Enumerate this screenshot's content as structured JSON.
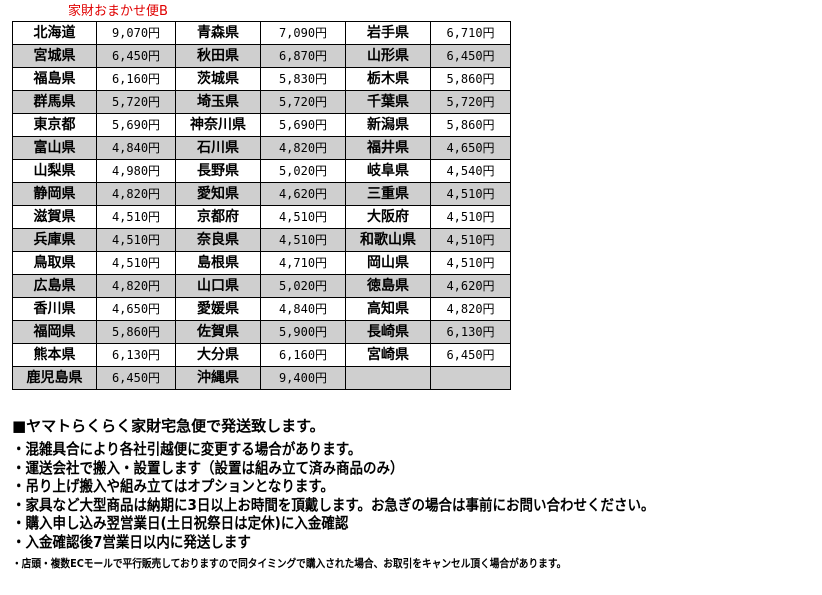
{
  "title": "家財おまかせ便B",
  "rows": [
    [
      [
        "北海道",
        "9,070円"
      ],
      [
        "青森県",
        "7,090円"
      ],
      [
        "岩手県",
        "6,710円"
      ]
    ],
    [
      [
        "宮城県",
        "6,450円"
      ],
      [
        "秋田県",
        "6,870円"
      ],
      [
        "山形県",
        "6,450円"
      ]
    ],
    [
      [
        "福島県",
        "6,160円"
      ],
      [
        "茨城県",
        "5,830円"
      ],
      [
        "栃木県",
        "5,860円"
      ]
    ],
    [
      [
        "群馬県",
        "5,720円"
      ],
      [
        "埼玉県",
        "5,720円"
      ],
      [
        "千葉県",
        "5,720円"
      ]
    ],
    [
      [
        "東京都",
        "5,690円"
      ],
      [
        "神奈川県",
        "5,690円"
      ],
      [
        "新潟県",
        "5,860円"
      ]
    ],
    [
      [
        "富山県",
        "4,840円"
      ],
      [
        "石川県",
        "4,820円"
      ],
      [
        "福井県",
        "4,650円"
      ]
    ],
    [
      [
        "山梨県",
        "4,980円"
      ],
      [
        "長野県",
        "5,020円"
      ],
      [
        "岐阜県",
        "4,540円"
      ]
    ],
    [
      [
        "静岡県",
        "4,820円"
      ],
      [
        "愛知県",
        "4,620円"
      ],
      [
        "三重県",
        "4,510円"
      ]
    ],
    [
      [
        "滋賀県",
        "4,510円"
      ],
      [
        "京都府",
        "4,510円"
      ],
      [
        "大阪府",
        "4,510円"
      ]
    ],
    [
      [
        "兵庫県",
        "4,510円"
      ],
      [
        "奈良県",
        "4,510円"
      ],
      [
        "和歌山県",
        "4,510円"
      ]
    ],
    [
      [
        "鳥取県",
        "4,510円"
      ],
      [
        "島根県",
        "4,710円"
      ],
      [
        "岡山県",
        "4,510円"
      ]
    ],
    [
      [
        "広島県",
        "4,820円"
      ],
      [
        "山口県",
        "5,020円"
      ],
      [
        "徳島県",
        "4,620円"
      ]
    ],
    [
      [
        "香川県",
        "4,650円"
      ],
      [
        "愛媛県",
        "4,840円"
      ],
      [
        "高知県",
        "4,820円"
      ]
    ],
    [
      [
        "福岡県",
        "5,860円"
      ],
      [
        "佐賀県",
        "5,900円"
      ],
      [
        "長崎県",
        "6,130円"
      ]
    ],
    [
      [
        "熊本県",
        "6,130円"
      ],
      [
        "大分県",
        "6,160円"
      ],
      [
        "宮崎県",
        "6,450円"
      ]
    ],
    [
      [
        "鹿児島県",
        "6,450円"
      ],
      [
        "沖縄県",
        "9,400円"
      ],
      [
        "",
        ""
      ]
    ]
  ],
  "row_colors": {
    "odd": "#ffffff",
    "even": "#cfcfcf"
  },
  "title_color": "#e00000",
  "notes": {
    "heading": "■ヤマトらくらく家財宅急便で発送致します。",
    "bullets": [
      "・混雑具合により各社引越便に変更する場合があります。",
      "・運送会社で搬入・設置します（設置は組み立て済み商品のみ）",
      "・吊り上げ搬入や組み立てはオプションとなります。",
      "・家具など大型商品は納期に3日以上お時間を頂戴します。お急ぎの場合は事前にお問い合わせください。",
      "・購入申し込み翌営業日(土日祝祭日は定休)に入金確認",
      "・入金確認後7営業日以内に発送します"
    ],
    "small": "・店頭・複数ECモールで平行販売しておりますので同タイミングで購入された場合、お取引をキャンセル頂く場合があります。"
  }
}
